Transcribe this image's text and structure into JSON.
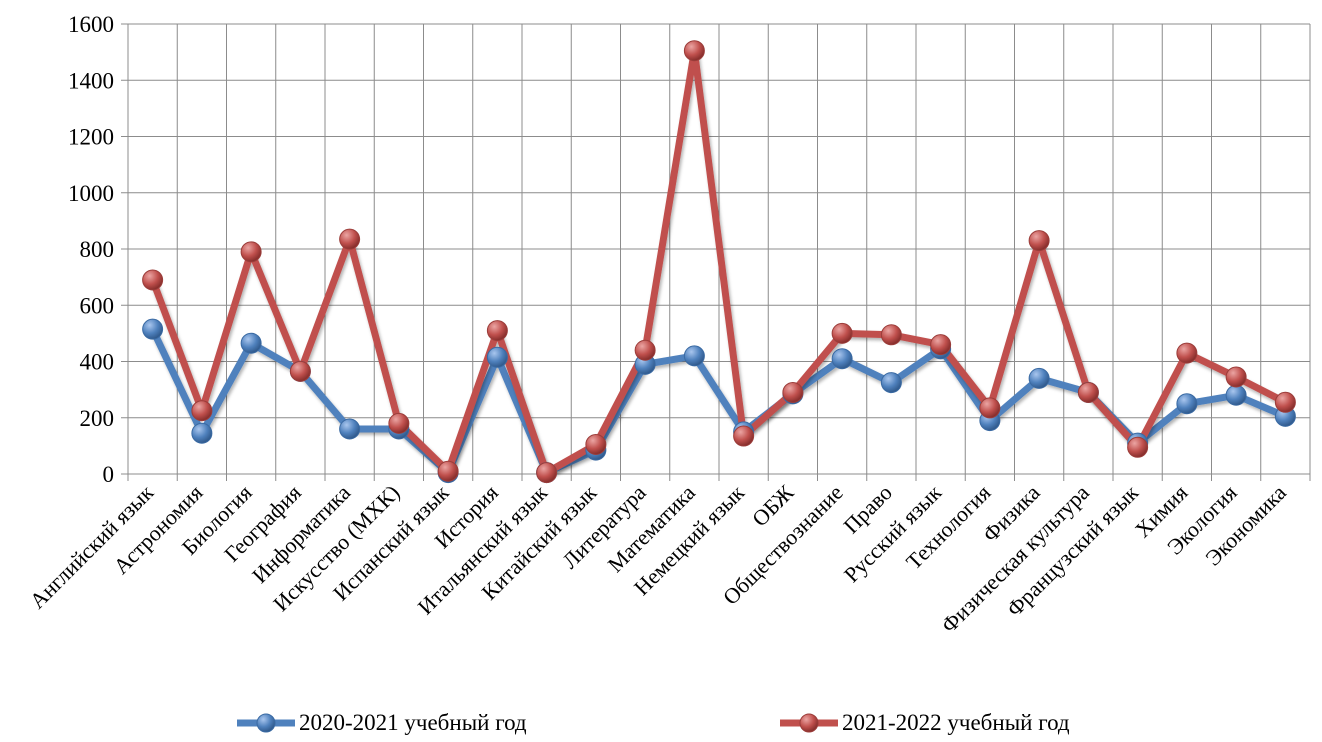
{
  "chart_data": {
    "type": "line",
    "categories": [
      "Английский язык",
      "Астрономия",
      "Биология",
      "География",
      "Информатика",
      "Искусство (МХК)",
      "Испанский язык",
      "История",
      "Итальянский язык",
      "Китайский язык",
      "Литература",
      "Математика",
      "Немецкий язык",
      "ОБЖ",
      "Обществознание",
      "Право",
      "Русский язык",
      "Технология",
      "Физика",
      "Физическая культура",
      "Французский язык",
      "Химия",
      "Экология",
      "Экономика"
    ],
    "series": [
      {
        "name": "2020-2021 учебный год",
        "color": "#4F81BD",
        "values": [
          515,
          145,
          465,
          365,
          160,
          160,
          5,
          415,
          5,
          85,
          390,
          420,
          150,
          285,
          410,
          325,
          445,
          190,
          340,
          290,
          110,
          250,
          280,
          205
        ]
      },
      {
        "name": "2021-2022 учебный год",
        "color": "#C0504D",
        "values": [
          690,
          225,
          790,
          365,
          835,
          180,
          10,
          510,
          5,
          105,
          440,
          1505,
          135,
          290,
          500,
          495,
          460,
          235,
          830,
          290,
          95,
          430,
          345,
          255
        ]
      }
    ],
    "yticks": [
      0,
      200,
      400,
      600,
      800,
      1000,
      1200,
      1400,
      1600
    ],
    "ylim": [
      0,
      1600
    ],
    "grid": true,
    "legend": "bottom"
  }
}
